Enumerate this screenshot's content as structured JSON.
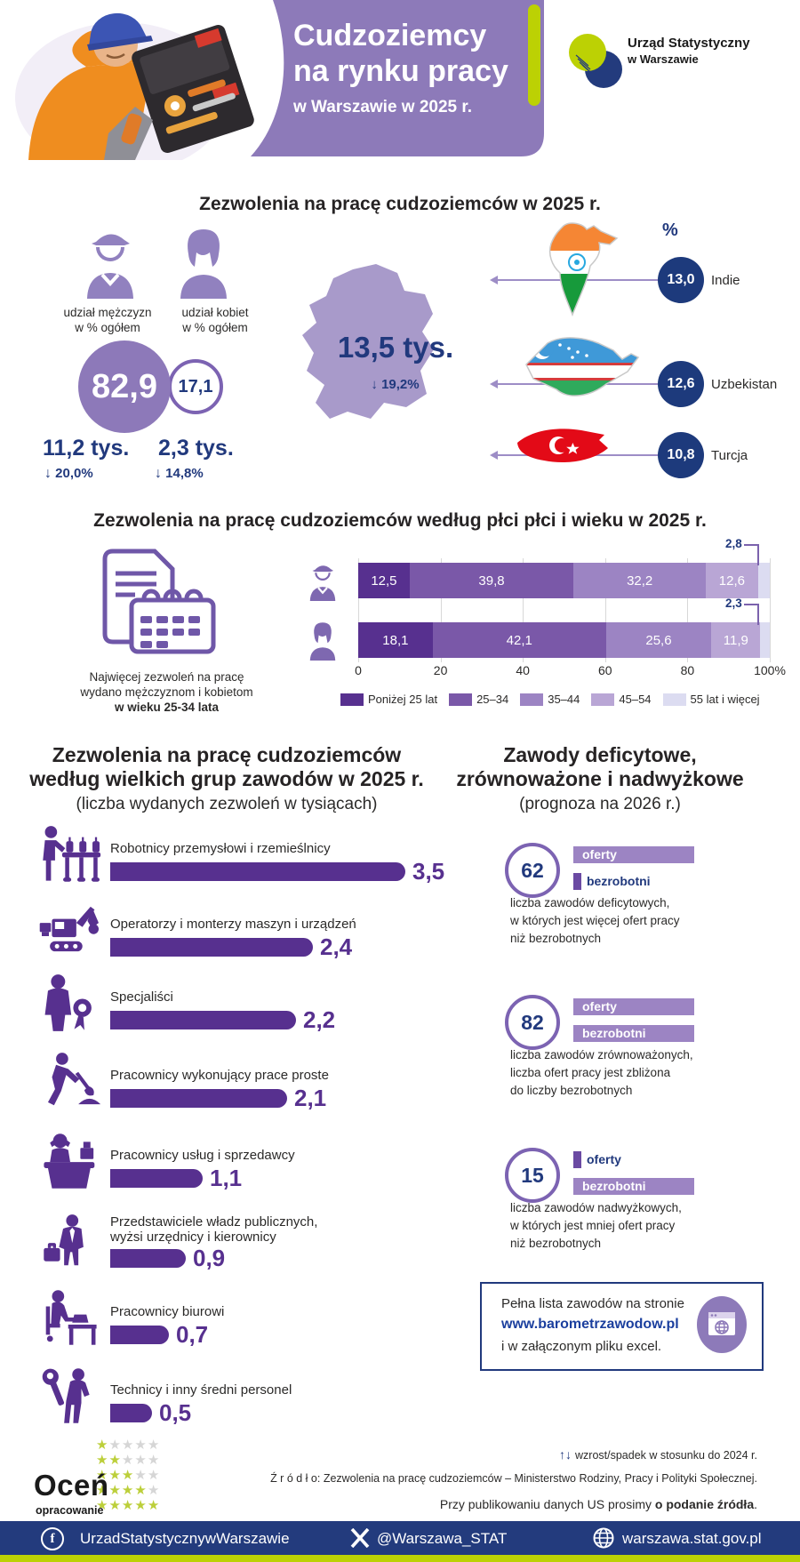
{
  "header": {
    "title_line1": "Cudzoziemcy",
    "title_line2": "na rynku pracy",
    "subtitle": "w Warszawie w 2025 r.",
    "logo": {
      "line1": "Urząd Statystyczny",
      "line2": "w Warszawie"
    }
  },
  "permits": {
    "title": "Zezwolenia na pracę cudzoziemców w 2025 r.",
    "men_label": "udział mężczyzn\nw % ogółem",
    "women_label": "udział kobiet\nw % ogółem",
    "men_share": "82,9",
    "women_share": "17,1",
    "men_count": "11,2 tys.",
    "men_change": "20,0%",
    "women_count": "2,3 tys.",
    "women_change": "14,8%",
    "total_value": "13,5 tys.",
    "total_change": "19,2%",
    "percent_header": "%",
    "countries": [
      {
        "name": "Indie",
        "value": "13,0"
      },
      {
        "name": "Uzbekistan",
        "value": "12,6"
      },
      {
        "name": "Turcja",
        "value": "10,8"
      }
    ]
  },
  "age_section": {
    "title": "Zezwolenia na pracę cudzoziemców  według płci płci i wieku w 2025 r.",
    "note_line1": "Najwięcej zezwoleń na pracę",
    "note_line2": "wydano mężczyznom i kobietom",
    "note_line3": "w wieku 25-34 lata",
    "callout_male": "2,8",
    "callout_female": "2,3"
  },
  "occupations": {
    "title_line1": "Zezwolenia na pracę cudzoziemców",
    "title_line2": "według wielkich grup zawodów w 2025 r.",
    "subtitle": "(liczba wydanych zezwoleń w tysiącach)",
    "items": [
      {
        "label": "Robotnicy przemysłowi i rzemieślnicy",
        "value": 3.5,
        "display": "3,5"
      },
      {
        "label": "Operatorzy i monterzy maszyn i urządzeń",
        "value": 2.4,
        "display": "2,4"
      },
      {
        "label": "Specjaliści",
        "value": 2.2,
        "display": "2,2"
      },
      {
        "label": "Pracownicy wykonujący prace proste",
        "value": 2.1,
        "display": "2,1"
      },
      {
        "label": "Pracownicy usług i sprzedawcy",
        "value": 1.1,
        "display": "1,1"
      },
      {
        "label": "Przedstawiciele władz publicznych,\nwyżsi urzędnicy i kierownicy",
        "value": 0.9,
        "display": "0,9"
      },
      {
        "label": "Pracownicy biurowi",
        "value": 0.7,
        "display": "0,7"
      },
      {
        "label": "Technicy i inny średni personel",
        "value": 0.5,
        "display": "0,5"
      }
    ]
  },
  "forecast": {
    "title_line1": "Zawody deficytowe,",
    "title_line2": "zrównoważone i nadwyżkowe",
    "subtitle": "(prognoza na 2026 r.)",
    "oferty_label": "oferty",
    "bezrobotni_label": "bezrobotni",
    "groups": [
      {
        "count": "62",
        "oferty": "large",
        "bezrobotni": "small",
        "desc": "liczba zawodów deficytowych,\nw których jest więcej ofert pracy\nniż bezrobotnych"
      },
      {
        "count": "82",
        "oferty": "large",
        "bezrobotni": "large",
        "desc": "liczba zawodów zrównoważonych,\nliczba ofert pracy jest zbliżona\ndo liczby bezrobotnych"
      },
      {
        "count": "15",
        "oferty": "small",
        "bezrobotni": "large",
        "desc": "liczba zawodów nadwyżkowych,\nw których jest mniej ofert pracy\nniż bezrobotnych"
      }
    ],
    "info_box": {
      "line1": "Pełna lista zawodów na stronie",
      "link": "www.barometrzawodow.pl",
      "line2": "i w załączonym pliku excel."
    }
  },
  "footer": {
    "rate_title": "Oceń",
    "rate_subtitle": "opracowanie",
    "change_note": "wzrost/spadek w stosunku do 2024 r.",
    "source": "Ź r ó d ł o: Zezwolenia na pracę cudzoziemców – Ministerstwo Rodziny, Pracy i Polityki Społecznej.",
    "publish_prefix": "Przy publikowaniu danych US prosimy ",
    "publish_bold": "o podanie źródła",
    "publish_suffix": ".",
    "facebook": "UrzadStatystycznywWarszawie",
    "x": "@Warszawa_STAT",
    "website": "warszawa.stat.gov.pl"
  },
  "chart_data": [
    {
      "type": "bar",
      "subtype": "stacked-horizontal-percent",
      "title": "Zezwolenia na pracę cudzoziemców według płci i wieku w 2025 r.",
      "categories": [
        "mężczyźni",
        "kobiety"
      ],
      "legend": [
        "Poniżej 25 lat",
        "25–34",
        "35–44",
        "45–54",
        "55 lat i więcej"
      ],
      "series": [
        {
          "name": "mężczyźni",
          "values": [
            12.5,
            39.8,
            32.2,
            12.6,
            2.8
          ]
        },
        {
          "name": "kobiety",
          "values": [
            18.1,
            42.1,
            25.6,
            11.9,
            2.3
          ]
        }
      ],
      "x_ticks": [
        "0",
        "20",
        "40",
        "60",
        "80",
        "100%"
      ],
      "xlim": [
        0,
        100
      ],
      "colors": [
        "#57308f",
        "#7a58a8",
        "#9c84c3",
        "#b9a6d5",
        "#dcdcf1"
      ],
      "legend_position": "bottom",
      "grid": true
    },
    {
      "type": "bar",
      "subtype": "horizontal",
      "title": "Zezwolenia na pracę cudzoziemców według wielkich grup zawodów w 2025 r.",
      "subtitle": "(liczba wydanych zezwoleń w tysiącach)",
      "categories": [
        "Robotnicy przemysłowi i rzemieślnicy",
        "Operatorzy i monterzy maszyn i urządzeń",
        "Specjaliści",
        "Pracownicy wykonujący prace proste",
        "Pracownicy usług i sprzedawcy",
        "Przedstawiciele władz publicznych, wyżsi urzędnicy i kierownicy",
        "Pracownicy biurowi",
        "Technicy i inny średni personel"
      ],
      "values": [
        3.5,
        2.4,
        2.2,
        2.1,
        1.1,
        0.9,
        0.7,
        0.5
      ],
      "bar_color": "#57308f",
      "xlim": [
        0,
        3.5
      ]
    }
  ]
}
